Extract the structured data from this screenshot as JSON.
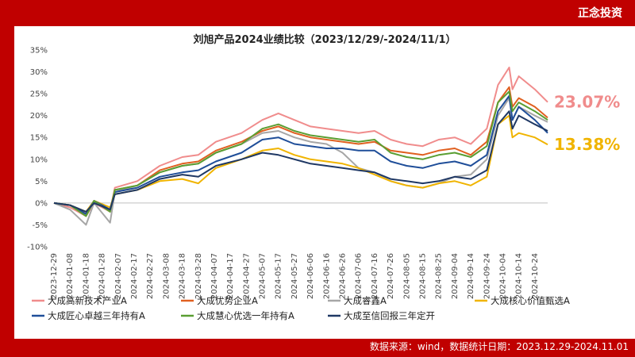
{
  "brand": "正念投资",
  "footer": "数据来源：wind，数据统计日期：2023.12.29-2024.11.01",
  "colors": {
    "frame": "#c00000",
    "panel": "#ffffff"
  },
  "chart_data": {
    "type": "line",
    "title": "刘旭产品2024业绩比较（2023/12/29/-2024/11/1）",
    "ylim": [
      -10,
      35
    ],
    "yticks": [
      "-10%",
      "-5%",
      "0%",
      "5%",
      "10%",
      "15%",
      "20%",
      "25%",
      "30%",
      "35%"
    ],
    "yvalues": [
      -10,
      -5,
      0,
      5,
      10,
      15,
      20,
      25,
      30,
      35
    ],
    "xticks": [
      "2023-12-29",
      "2024-01-08",
      "2024-01-18",
      "2024-01-28",
      "2024-02-07",
      "2024-02-17",
      "2024-02-27",
      "2024-03-08",
      "2024-03-18",
      "2024-03-28",
      "2024-04-07",
      "2024-04-17",
      "2024-04-27",
      "2024-05-07",
      "2024-05-17",
      "2024-05-27",
      "2024-06-06",
      "2024-06-16",
      "2024-06-26",
      "2024-07-06",
      "2024-07-16",
      "2024-07-26",
      "2024-08-05",
      "2024-08-15",
      "2024-08-25",
      "2024-09-04",
      "2024-09-14",
      "2024-09-24",
      "2024-10-04",
      "2024-10-14",
      "2024-10-24"
    ],
    "xrange": [
      "2023-12-29",
      "2024-11-01"
    ],
    "legend_position": "bottom",
    "annotations": [
      {
        "text": "23.07%",
        "series": 0,
        "color": "#f08c8c"
      },
      {
        "text": "13.38%",
        "series": 3,
        "color": "#f0b400"
      }
    ],
    "series": [
      {
        "name": "大成高新技术产业A",
        "color": "#f08c8c",
        "points": [
          [
            "2023-12-29",
            0
          ],
          [
            "2024-01-08",
            -1
          ],
          [
            "2024-01-18",
            -3
          ],
          [
            "2024-01-23",
            0
          ],
          [
            "2024-02-02",
            -2
          ],
          [
            "2024-02-05",
            3.5
          ],
          [
            "2024-02-19",
            5
          ],
          [
            "2024-03-04",
            8.5
          ],
          [
            "2024-03-18",
            10.5
          ],
          [
            "2024-03-28",
            11
          ],
          [
            "2024-04-08",
            14
          ],
          [
            "2024-04-24",
            16
          ],
          [
            "2024-05-07",
            19
          ],
          [
            "2024-05-17",
            20.5
          ],
          [
            "2024-05-27",
            19
          ],
          [
            "2024-06-06",
            17.5
          ],
          [
            "2024-06-16",
            17
          ],
          [
            "2024-06-26",
            16.5
          ],
          [
            "2024-07-06",
            16
          ],
          [
            "2024-07-16",
            16.5
          ],
          [
            "2024-07-26",
            14.5
          ],
          [
            "2024-08-05",
            13.5
          ],
          [
            "2024-08-15",
            13
          ],
          [
            "2024-08-25",
            14.5
          ],
          [
            "2024-09-04",
            15
          ],
          [
            "2024-09-14",
            13.5
          ],
          [
            "2024-09-24",
            17
          ],
          [
            "2024-10-01",
            27
          ],
          [
            "2024-10-08",
            31
          ],
          [
            "2024-10-10",
            26
          ],
          [
            "2024-10-14",
            29
          ],
          [
            "2024-10-24",
            26
          ],
          [
            "2024-11-01",
            23.07
          ]
        ]
      },
      {
        "name": "大成优势企业A",
        "color": "#e06020",
        "points": [
          [
            "2023-12-29",
            0
          ],
          [
            "2024-01-08",
            -0.5
          ],
          [
            "2024-01-18",
            -2.5
          ],
          [
            "2024-01-23",
            0.5
          ],
          [
            "2024-02-02",
            -1.5
          ],
          [
            "2024-02-05",
            3
          ],
          [
            "2024-02-19",
            4
          ],
          [
            "2024-03-04",
            7.5
          ],
          [
            "2024-03-18",
            9
          ],
          [
            "2024-03-28",
            9.5
          ],
          [
            "2024-04-08",
            12
          ],
          [
            "2024-04-24",
            14
          ],
          [
            "2024-05-07",
            16.5
          ],
          [
            "2024-05-17",
            17.5
          ],
          [
            "2024-05-27",
            16
          ],
          [
            "2024-06-06",
            15
          ],
          [
            "2024-06-16",
            14.5
          ],
          [
            "2024-06-26",
            14
          ],
          [
            "2024-07-06",
            13.5
          ],
          [
            "2024-07-16",
            14
          ],
          [
            "2024-07-26",
            12
          ],
          [
            "2024-08-05",
            11.5
          ],
          [
            "2024-08-15",
            11
          ],
          [
            "2024-08-25",
            12
          ],
          [
            "2024-09-04",
            12.5
          ],
          [
            "2024-09-14",
            11
          ],
          [
            "2024-09-24",
            14
          ],
          [
            "2024-10-01",
            23
          ],
          [
            "2024-10-08",
            26.5
          ],
          [
            "2024-10-10",
            22
          ],
          [
            "2024-10-14",
            24
          ],
          [
            "2024-10-24",
            22
          ],
          [
            "2024-11-01",
            19.5
          ]
        ]
      },
      {
        "name": "大成睿鑫A",
        "color": "#a6a6a6",
        "points": [
          [
            "2023-12-29",
            0
          ],
          [
            "2024-01-08",
            -1.5
          ],
          [
            "2024-01-18",
            -5
          ],
          [
            "2024-01-23",
            0
          ],
          [
            "2024-02-02",
            -4.5
          ],
          [
            "2024-02-05",
            2.5
          ],
          [
            "2024-02-19",
            4
          ],
          [
            "2024-03-04",
            7
          ],
          [
            "2024-03-18",
            8.5
          ],
          [
            "2024-03-28",
            9
          ],
          [
            "2024-04-08",
            11.5
          ],
          [
            "2024-04-24",
            13.5
          ],
          [
            "2024-05-07",
            16
          ],
          [
            "2024-05-17",
            16.5
          ],
          [
            "2024-05-27",
            15
          ],
          [
            "2024-06-06",
            14
          ],
          [
            "2024-06-16",
            13.5
          ],
          [
            "2024-06-26",
            11.5
          ],
          [
            "2024-07-06",
            8
          ],
          [
            "2024-07-16",
            7
          ],
          [
            "2024-07-26",
            5
          ],
          [
            "2024-08-05",
            4
          ],
          [
            "2024-08-15",
            3.5
          ],
          [
            "2024-08-25",
            4.5
          ],
          [
            "2024-09-04",
            6
          ],
          [
            "2024-09-14",
            6.5
          ],
          [
            "2024-09-24",
            10
          ],
          [
            "2024-10-01",
            20
          ],
          [
            "2024-10-08",
            24
          ],
          [
            "2024-10-10",
            19
          ],
          [
            "2024-10-14",
            22
          ],
          [
            "2024-10-24",
            20
          ],
          [
            "2024-11-01",
            18.5
          ]
        ]
      },
      {
        "name": "大成核心价值甄选A",
        "color": "#f0b400",
        "points": [
          [
            "2023-12-29",
            0
          ],
          [
            "2024-01-08",
            -0.5
          ],
          [
            "2024-01-18",
            -2
          ],
          [
            "2024-01-23",
            0.5
          ],
          [
            "2024-02-02",
            -1
          ],
          [
            "2024-02-05",
            2
          ],
          [
            "2024-02-19",
            3
          ],
          [
            "2024-03-04",
            5
          ],
          [
            "2024-03-18",
            5.5
          ],
          [
            "2024-03-28",
            4.5
          ],
          [
            "2024-04-08",
            8
          ],
          [
            "2024-04-24",
            10
          ],
          [
            "2024-05-07",
            12
          ],
          [
            "2024-05-17",
            12.5
          ],
          [
            "2024-05-27",
            11
          ],
          [
            "2024-06-06",
            10
          ],
          [
            "2024-06-16",
            9.5
          ],
          [
            "2024-06-26",
            9
          ],
          [
            "2024-07-06",
            8
          ],
          [
            "2024-07-16",
            6.5
          ],
          [
            "2024-07-26",
            5
          ],
          [
            "2024-08-05",
            4
          ],
          [
            "2024-08-15",
            3.5
          ],
          [
            "2024-08-25",
            4.5
          ],
          [
            "2024-09-04",
            5
          ],
          [
            "2024-09-14",
            4
          ],
          [
            "2024-09-24",
            6
          ],
          [
            "2024-10-01",
            18
          ],
          [
            "2024-10-08",
            20
          ],
          [
            "2024-10-10",
            15
          ],
          [
            "2024-10-14",
            16
          ],
          [
            "2024-10-24",
            15
          ],
          [
            "2024-11-01",
            13.38
          ]
        ]
      },
      {
        "name": "大成匠心卓越三年持有A",
        "color": "#1f4e99",
        "points": [
          [
            "2023-12-29",
            0
          ],
          [
            "2024-01-08",
            -0.5
          ],
          [
            "2024-01-18",
            -2.5
          ],
          [
            "2024-01-23",
            0.5
          ],
          [
            "2024-02-02",
            -1.5
          ],
          [
            "2024-02-05",
            2.5
          ],
          [
            "2024-02-19",
            3.5
          ],
          [
            "2024-03-04",
            6
          ],
          [
            "2024-03-18",
            7
          ],
          [
            "2024-03-28",
            7.5
          ],
          [
            "2024-04-08",
            9.5
          ],
          [
            "2024-04-24",
            11.5
          ],
          [
            "2024-05-07",
            14.5
          ],
          [
            "2024-05-17",
            15
          ],
          [
            "2024-05-27",
            13.5
          ],
          [
            "2024-06-06",
            13
          ],
          [
            "2024-06-16",
            12.5
          ],
          [
            "2024-06-26",
            12.5
          ],
          [
            "2024-07-06",
            12
          ],
          [
            "2024-07-16",
            12
          ],
          [
            "2024-07-26",
            9.5
          ],
          [
            "2024-08-05",
            8.5
          ],
          [
            "2024-08-15",
            8
          ],
          [
            "2024-08-25",
            9
          ],
          [
            "2024-09-04",
            9.5
          ],
          [
            "2024-09-14",
            8.5
          ],
          [
            "2024-09-24",
            11
          ],
          [
            "2024-10-01",
            21
          ],
          [
            "2024-10-08",
            24.5
          ],
          [
            "2024-10-10",
            19
          ],
          [
            "2024-10-14",
            22
          ],
          [
            "2024-10-24",
            19
          ],
          [
            "2024-11-01",
            16
          ]
        ]
      },
      {
        "name": "大成慧心优选一年持有A",
        "color": "#5a9e32",
        "points": [
          [
            "2023-12-29",
            0
          ],
          [
            "2024-01-08",
            -0.5
          ],
          [
            "2024-01-18",
            -3
          ],
          [
            "2024-01-23",
            0.5
          ],
          [
            "2024-02-02",
            -2
          ],
          [
            "2024-02-05",
            3
          ],
          [
            "2024-02-19",
            4
          ],
          [
            "2024-03-04",
            7
          ],
          [
            "2024-03-18",
            8.5
          ],
          [
            "2024-03-28",
            9
          ],
          [
            "2024-04-08",
            11.5
          ],
          [
            "2024-04-24",
            13.5
          ],
          [
            "2024-05-07",
            17
          ],
          [
            "2024-05-17",
            18
          ],
          [
            "2024-05-27",
            16.5
          ],
          [
            "2024-06-06",
            15.5
          ],
          [
            "2024-06-16",
            15
          ],
          [
            "2024-06-26",
            14.5
          ],
          [
            "2024-07-06",
            14
          ],
          [
            "2024-07-16",
            14.5
          ],
          [
            "2024-07-26",
            11.5
          ],
          [
            "2024-08-05",
            10.5
          ],
          [
            "2024-08-15",
            10
          ],
          [
            "2024-08-25",
            11
          ],
          [
            "2024-09-04",
            11.5
          ],
          [
            "2024-09-14",
            10.5
          ],
          [
            "2024-09-24",
            13
          ],
          [
            "2024-10-01",
            23
          ],
          [
            "2024-10-08",
            25.5
          ],
          [
            "2024-10-10",
            21
          ],
          [
            "2024-10-14",
            23
          ],
          [
            "2024-10-24",
            21
          ],
          [
            "2024-11-01",
            19
          ]
        ]
      },
      {
        "name": "大成至信回报三年定开",
        "color": "#1f3864",
        "points": [
          [
            "2023-12-29",
            0
          ],
          [
            "2024-01-08",
            -0.5
          ],
          [
            "2024-01-18",
            -2
          ],
          [
            "2024-01-23",
            0
          ],
          [
            "2024-02-02",
            -1.5
          ],
          [
            "2024-02-05",
            2
          ],
          [
            "2024-02-19",
            3
          ],
          [
            "2024-03-04",
            5.5
          ],
          [
            "2024-03-18",
            6.5
          ],
          [
            "2024-03-28",
            6
          ],
          [
            "2024-04-08",
            8.5
          ],
          [
            "2024-04-24",
            10
          ],
          [
            "2024-05-07",
            11.5
          ],
          [
            "2024-05-17",
            11
          ],
          [
            "2024-05-27",
            10
          ],
          [
            "2024-06-06",
            9
          ],
          [
            "2024-06-16",
            8.5
          ],
          [
            "2024-06-26",
            8
          ],
          [
            "2024-07-06",
            7.5
          ],
          [
            "2024-07-16",
            7
          ],
          [
            "2024-07-26",
            5.5
          ],
          [
            "2024-08-05",
            5
          ],
          [
            "2024-08-15",
            4.5
          ],
          [
            "2024-08-25",
            5
          ],
          [
            "2024-09-04",
            6
          ],
          [
            "2024-09-14",
            5.5
          ],
          [
            "2024-09-24",
            7.5
          ],
          [
            "2024-10-01",
            18
          ],
          [
            "2024-10-08",
            21
          ],
          [
            "2024-10-10",
            17
          ],
          [
            "2024-10-14",
            20
          ],
          [
            "2024-10-24",
            18
          ],
          [
            "2024-11-01",
            16.5
          ]
        ]
      }
    ]
  }
}
